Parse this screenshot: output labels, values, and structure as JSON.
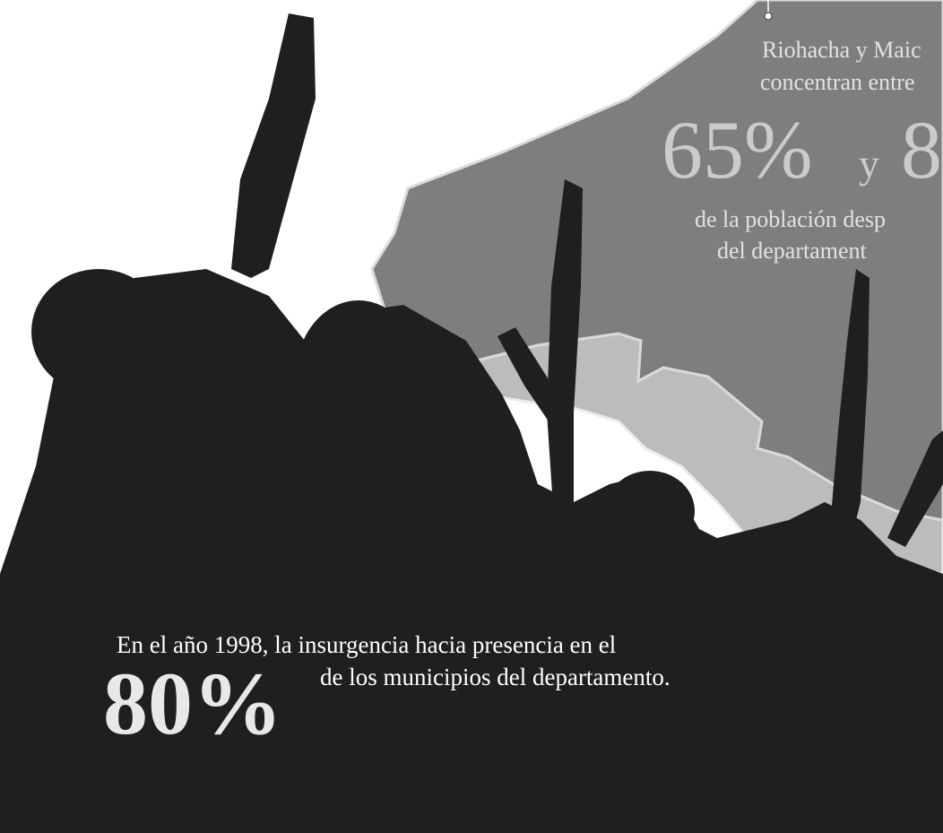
{
  "map_annotation": {
    "line_1": "Riohacha y Maic",
    "line_2": "concentran entre",
    "big_1": "65%",
    "connector": "y",
    "big_2": "8",
    "line_3": "de la población desp",
    "line_4": "del departament"
  },
  "footer": {
    "line_1": "En el año 1998, la insurgencia hacia presencia en el",
    "big": "80%",
    "line_2": "de los municipios del departamento."
  }
}
